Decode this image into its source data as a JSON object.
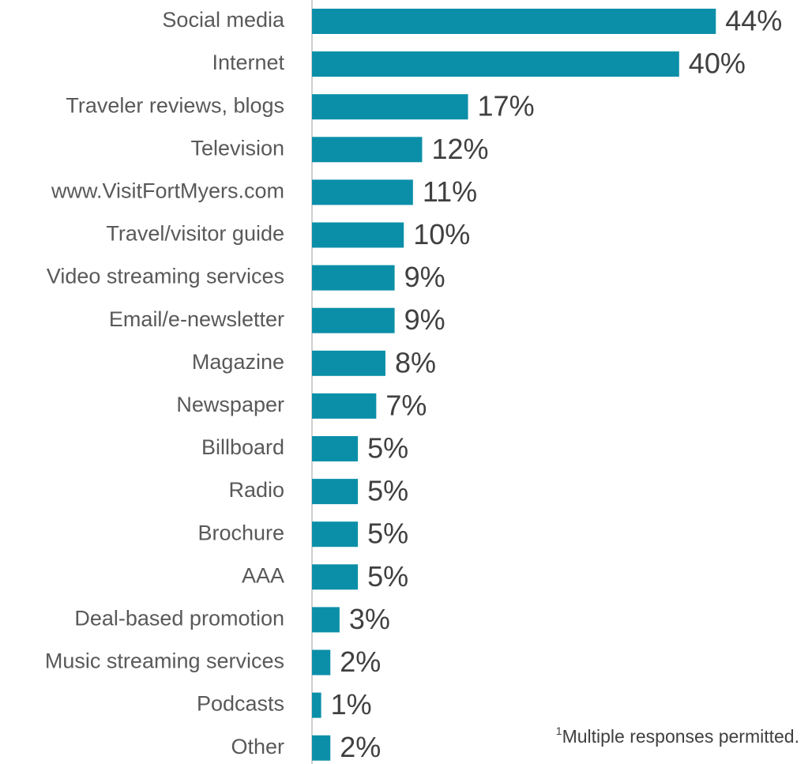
{
  "chart_data": {
    "type": "bar",
    "orientation": "horizontal",
    "color": "#0b8fa8",
    "categories": [
      "Social media",
      "Internet",
      "Traveler reviews, blogs",
      "Television",
      "www.VisitFortMyers.com",
      "Travel/visitor guide",
      "Video streaming services",
      "Email/e-newsletter",
      "Magazine",
      "Newspaper",
      "Billboard",
      "Radio",
      "Brochure",
      "AAA",
      "Deal-based promotion",
      "Music streaming services",
      "Podcasts",
      "Other"
    ],
    "values": [
      44,
      40,
      17,
      12,
      11,
      10,
      9,
      9,
      8,
      7,
      5,
      5,
      5,
      5,
      3,
      2,
      1,
      2
    ],
    "value_labels": [
      "44%",
      "40%",
      "17%",
      "12%",
      "11%",
      "10%",
      "9%",
      "9%",
      "8%",
      "7%",
      "5%",
      "5%",
      "5%",
      "5%",
      "3%",
      "2%",
      "1%",
      "2%"
    ],
    "footnote": {
      "marker": "1",
      "text": "Multiple responses permitted."
    }
  }
}
